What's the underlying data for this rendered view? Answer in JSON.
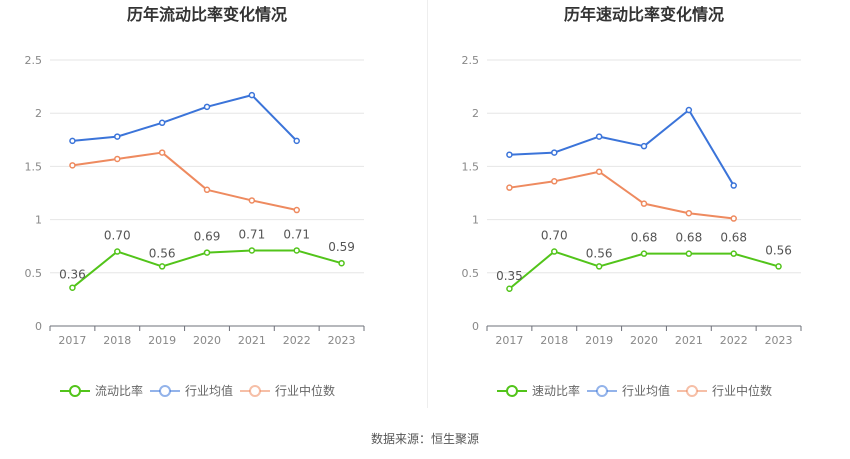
{
  "source_label": "数据来源：恒生聚源",
  "chart_data": [
    {
      "type": "line",
      "title": "历年流动比率变化情况",
      "categories": [
        "2017",
        "2018",
        "2019",
        "2020",
        "2021",
        "2022",
        "2023"
      ],
      "ylim": [
        0,
        2.5
      ],
      "yticks": [
        "0",
        "0.5",
        "1",
        "1.5",
        "2",
        "2.5"
      ],
      "grid": true,
      "legend_position": "bottom",
      "series": [
        {
          "name": "流动比率",
          "color": "#52c41a",
          "values": [
            0.36,
            0.7,
            0.56,
            0.69,
            0.71,
            0.71,
            0.59
          ],
          "labels": [
            "0.36",
            "0.70",
            "0.56",
            "0.69",
            "0.71",
            "0.71",
            "0.59"
          ]
        },
        {
          "name": "行业均值",
          "color": "#3b74d9",
          "values": [
            1.74,
            1.78,
            1.91,
            2.06,
            2.17,
            1.74,
            null
          ]
        },
        {
          "name": "行业中位数",
          "color": "#ee8a5f",
          "values": [
            1.51,
            1.57,
            1.63,
            1.28,
            1.18,
            1.09,
            null
          ]
        }
      ]
    },
    {
      "type": "line",
      "title": "历年速动比率变化情况",
      "categories": [
        "2017",
        "2018",
        "2019",
        "2020",
        "2021",
        "2022",
        "2023"
      ],
      "ylim": [
        0,
        2.5
      ],
      "yticks": [
        "0",
        "0.5",
        "1",
        "1.5",
        "2",
        "2.5"
      ],
      "grid": true,
      "legend_position": "bottom",
      "series": [
        {
          "name": "速动比率",
          "color": "#52c41a",
          "values": [
            0.35,
            0.7,
            0.56,
            0.68,
            0.68,
            0.68,
            0.56
          ],
          "labels": [
            "0.35",
            "0.70",
            "0.56",
            "0.68",
            "0.68",
            "0.68",
            "0.56"
          ]
        },
        {
          "name": "行业均值",
          "color": "#3b74d9",
          "values": [
            1.61,
            1.63,
            1.78,
            1.69,
            2.03,
            1.32,
            null
          ]
        },
        {
          "name": "行业中位数",
          "color": "#ee8a5f",
          "values": [
            1.3,
            1.36,
            1.45,
            1.15,
            1.06,
            1.01,
            null
          ]
        }
      ]
    }
  ]
}
